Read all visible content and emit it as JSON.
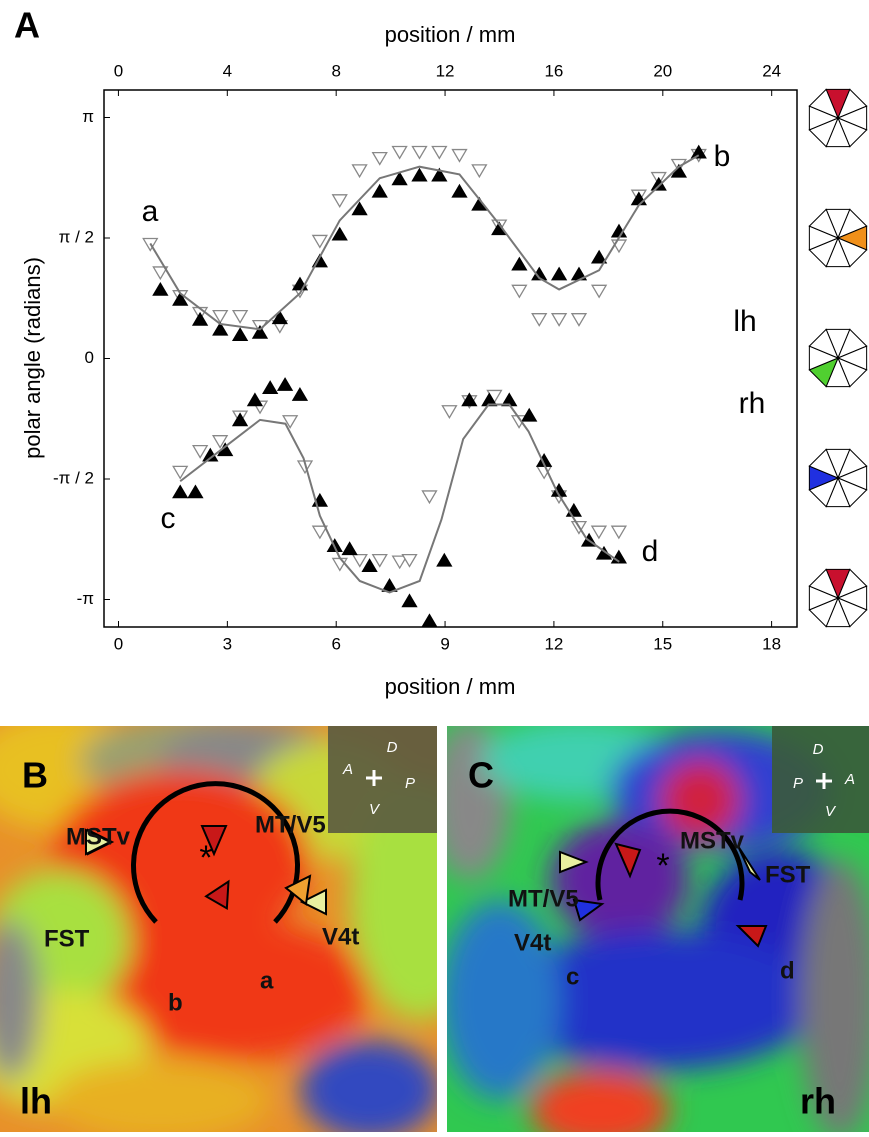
{
  "chart_data": {
    "type": "scatter",
    "panel_label": "A",
    "xlabel": "position / mm",
    "x2label": "position / mm",
    "ylabel": "polar angle (radians)",
    "xlim": [
      -0.4,
      18.7
    ],
    "xticks": [
      0,
      3,
      6,
      9,
      12,
      15,
      18
    ],
    "x2lim": [
      -0.53,
      24.93
    ],
    "x2ticks": [
      0,
      4,
      8,
      12,
      16,
      20,
      24
    ],
    "ylim": [
      -3.5,
      3.5
    ],
    "yticks": [
      {
        "value": 3.14159,
        "label": "π"
      },
      {
        "value": 1.5708,
        "label": "π / 2"
      },
      0,
      {
        "value": -1.5708,
        "label": "-π / 2"
      },
      {
        "value": -3.14159,
        "label": "-π"
      }
    ],
    "annotations": [
      "a",
      "b",
      "c",
      "d",
      "lh",
      "rh"
    ],
    "series": [
      {
        "marker": "triangle-down",
        "color": "#888888",
        "axis": "x2",
        "x": [
          1.17,
          1.54,
          2.27,
          3.0,
          3.74,
          4.47,
          5.2,
          5.93,
          6.67,
          7.4,
          8.13,
          8.86,
          9.6,
          10.33,
          11.06,
          11.79,
          12.53,
          13.26,
          13.99,
          14.73,
          15.46,
          16.19,
          16.92,
          17.66,
          18.39,
          19.12,
          19.85,
          20.59,
          21.32
        ],
        "values": [
          1.5,
          1.13,
          0.82,
          0.6,
          0.56,
          0.56,
          0.43,
          0.43,
          0.89,
          1.54,
          2.07,
          2.46,
          2.62,
          2.7,
          2.7,
          2.7,
          2.66,
          2.46,
          1.74,
          0.89,
          0.52,
          0.52,
          0.52,
          0.89,
          1.48,
          2.13,
          2.36,
          2.53,
          2.66
        ]
      },
      {
        "marker": "triangle-up",
        "color": "#000000",
        "axis": "x2",
        "x": [
          1.54,
          2.27,
          3.0,
          3.74,
          4.47,
          5.2,
          5.93,
          6.67,
          7.4,
          8.13,
          8.86,
          9.6,
          10.33,
          11.06,
          11.79,
          12.53,
          13.26,
          13.99,
          14.73,
          15.46,
          16.19,
          16.92,
          17.66,
          18.39,
          19.12,
          19.85,
          20.59,
          21.32
        ],
        "values": [
          0.89,
          0.76,
          0.5,
          0.37,
          0.3,
          0.33,
          0.52,
          0.96,
          1.26,
          1.61,
          1.94,
          2.17,
          2.33,
          2.38,
          2.38,
          2.17,
          2.0,
          1.68,
          1.22,
          1.09,
          1.09,
          1.09,
          1.31,
          1.65,
          2.07,
          2.26,
          2.43,
          2.68
        ]
      },
      {
        "marker": "line",
        "color": "#777777",
        "axis": "x2",
        "x": [
          1.17,
          2.27,
          3.74,
          5.2,
          6.67,
          8.13,
          9.6,
          11.06,
          12.53,
          13.99,
          15.46,
          16.19,
          17.66,
          19.12,
          20.59,
          21.32
        ],
        "values": [
          1.5,
          0.85,
          0.45,
          0.38,
          0.85,
          1.8,
          2.35,
          2.5,
          2.4,
          1.75,
          1.05,
          0.9,
          1.15,
          2.0,
          2.5,
          2.65
        ]
      },
      {
        "marker": "triangle-down",
        "color": "#888888",
        "x": [
          1.7,
          2.25,
          2.8,
          3.35,
          3.9,
          4.73,
          5.14,
          5.55,
          6.1,
          6.65,
          7.2,
          7.75,
          8.02,
          8.57,
          9.12,
          9.67,
          10.36,
          11.04,
          11.73,
          12.14,
          12.69,
          13.24,
          13.79
        ],
        "values": [
          -1.47,
          -1.2,
          -1.07,
          -0.75,
          -0.62,
          -0.81,
          -1.4,
          -2.25,
          -2.67,
          -2.62,
          -2.62,
          -2.64,
          -2.62,
          -1.79,
          -0.68,
          -0.55,
          -0.48,
          -0.81,
          -1.47,
          -1.79,
          -2.19,
          -2.25,
          -2.25
        ]
      },
      {
        "marker": "triangle-up",
        "color": "#000000",
        "x": [
          1.7,
          2.12,
          2.53,
          2.94,
          3.35,
          3.76,
          4.18,
          4.59,
          5.0,
          5.55,
          5.96,
          6.37,
          6.92,
          7.47,
          8.02,
          8.57,
          8.98,
          9.67,
          10.22,
          10.77,
          11.32,
          11.73,
          12.14,
          12.55,
          12.97,
          13.38,
          13.79
        ],
        "values": [
          -1.75,
          -1.75,
          -1.27,
          -1.2,
          -0.81,
          -0.55,
          -0.39,
          -0.35,
          -0.48,
          -1.86,
          -2.45,
          -2.49,
          -2.71,
          -2.97,
          -3.17,
          -3.43,
          -2.64,
          -0.55,
          -0.55,
          -0.55,
          -0.75,
          -1.34,
          -1.73,
          -1.99,
          -2.38,
          -2.55,
          -2.6
        ]
      },
      {
        "marker": "line",
        "color": "#777777",
        "x": [
          1.7,
          2.8,
          3.9,
          4.6,
          5.1,
          5.55,
          6.1,
          6.65,
          7.47,
          8.3,
          8.9,
          9.5,
          10.2,
          10.77,
          11.3,
          12.1,
          12.9,
          13.8
        ],
        "values": [
          -1.6,
          -1.2,
          -0.8,
          -0.85,
          -1.3,
          -2.05,
          -2.6,
          -2.9,
          -3.05,
          -2.9,
          -2.1,
          -1.05,
          -0.6,
          -0.6,
          -0.95,
          -1.75,
          -2.35,
          -2.65
        ]
      }
    ]
  },
  "panels": [
    {
      "label": "B",
      "hemisphere": "lh",
      "regions": [
        "MSTv",
        "MT/V5",
        "FST",
        "V4t"
      ],
      "markers": [
        "a",
        "b"
      ],
      "compass": [
        "D",
        "A",
        "P",
        "V"
      ]
    },
    {
      "label": "C",
      "hemisphere": "rh",
      "regions": [
        "MT/V5",
        "MSTv",
        "FST",
        "V4t"
      ],
      "markers": [
        "c",
        "d"
      ],
      "compass": [
        "D",
        "P",
        "A",
        "V"
      ]
    }
  ]
}
